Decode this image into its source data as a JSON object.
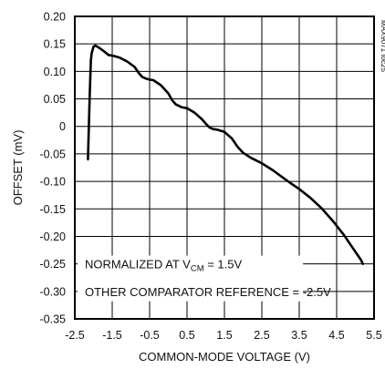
{
  "chart_data": {
    "type": "line",
    "xlabel": "COMMON-MODE VOLTAGE (V)",
    "ylabel": "OFFSET (mV)",
    "xlim": [
      -2.5,
      5.5
    ],
    "ylim": [
      -0.35,
      0.2
    ],
    "x_ticks": [
      "-2.5",
      "-1.5",
      "-0.5",
      "0.5",
      "1.5",
      "2.5",
      "3.5",
      "4.5",
      "5.5"
    ],
    "y_ticks": [
      "0.20",
      "0.15",
      "0.10",
      "0.05",
      "0",
      "-0.05",
      "-0.10",
      "-0.15",
      "-0.20",
      "-0.25",
      "-0.30",
      "-0.35"
    ],
    "grid": true,
    "annotations": {
      "line1_prefix": "NORMALIZED AT V",
      "line1_sub": "CM",
      "line1_suffix": " = 1.5V",
      "line2": "OTHER COMPARATOR REFERENCE = -2.5V"
    },
    "figure_id": "MAX9071 toc25",
    "series": [
      {
        "x": [
          -2.15,
          -2.1,
          -2.07,
          -2.05,
          -2.0,
          -1.95,
          -1.85,
          -1.75,
          -1.6,
          -1.45,
          -1.3,
          -1.1,
          -0.9,
          -0.8,
          -0.7,
          -0.6,
          -0.5,
          -0.4,
          -0.2,
          0.0,
          0.1,
          0.2,
          0.35,
          0.5,
          0.7,
          0.9,
          1.0,
          1.1,
          1.2,
          1.3,
          1.5,
          1.7,
          1.85,
          2.0,
          2.2,
          2.5,
          2.8,
          3.2,
          3.5,
          3.8,
          4.1,
          4.4,
          4.7,
          4.9,
          5.05,
          5.15,
          5.2
        ],
        "y": [
          -0.06,
          0.06,
          0.12,
          0.133,
          0.145,
          0.147,
          0.143,
          0.138,
          0.13,
          0.128,
          0.125,
          0.118,
          0.108,
          0.098,
          0.09,
          0.087,
          0.085,
          0.084,
          0.075,
          0.06,
          0.048,
          0.04,
          0.035,
          0.033,
          0.025,
          0.013,
          0.005,
          -0.002,
          -0.005,
          -0.006,
          -0.01,
          -0.022,
          -0.037,
          -0.048,
          -0.057,
          -0.067,
          -0.08,
          -0.1,
          -0.114,
          -0.13,
          -0.149,
          -0.172,
          -0.198,
          -0.218,
          -0.233,
          -0.243,
          -0.25
        ]
      }
    ]
  }
}
